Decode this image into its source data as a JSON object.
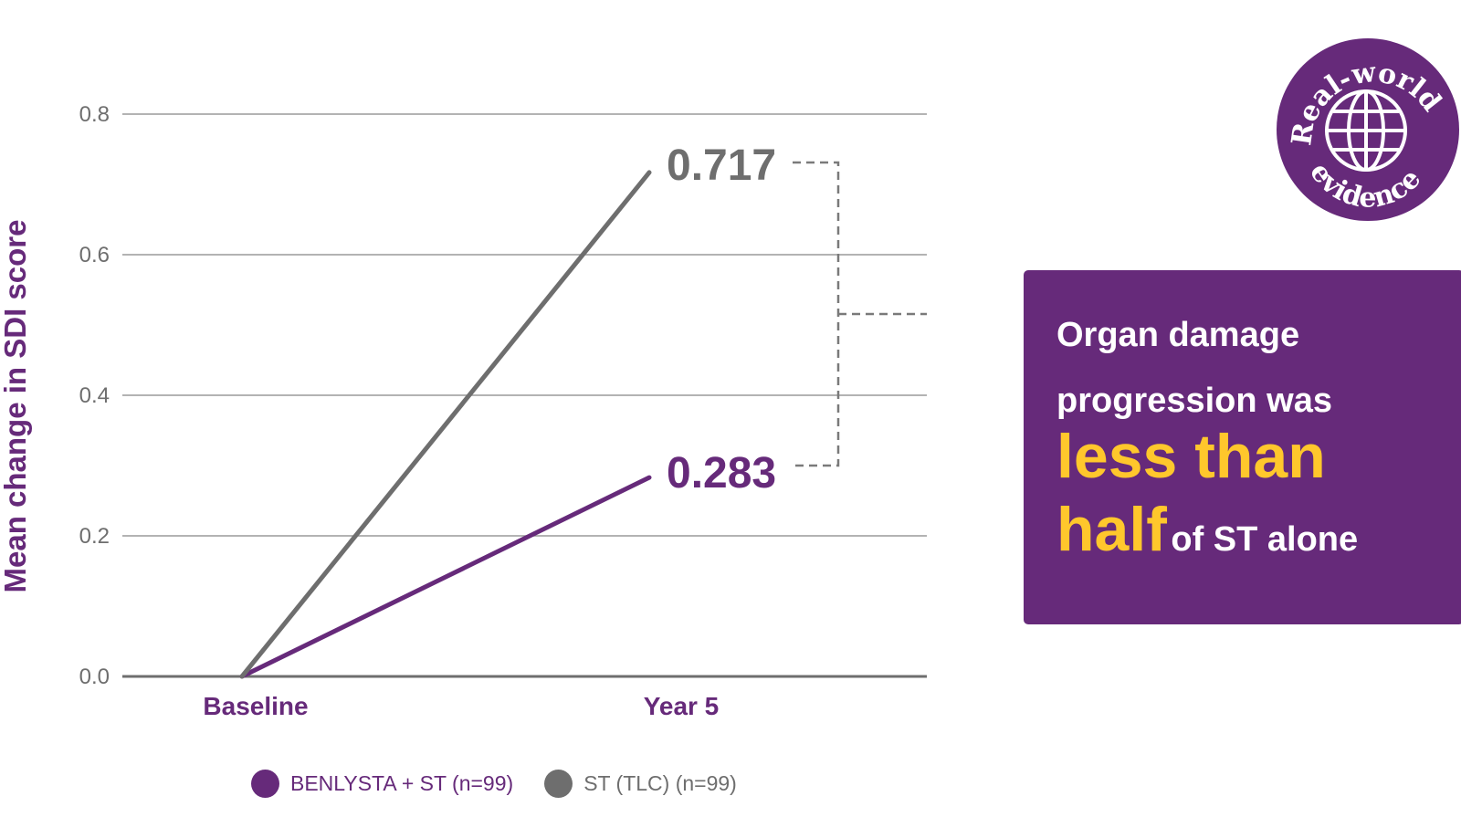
{
  "chart_data": {
    "type": "line",
    "categories": [
      "Baseline",
      "Year 5"
    ],
    "series": [
      {
        "name": "BENLYSTA + ST (n=99)",
        "values": [
          0.0,
          0.283
        ],
        "color": "#662a7a"
      },
      {
        "name": "ST (TLC) (n=99)",
        "values": [
          0.0,
          0.717
        ],
        "color": "#6e6e6e"
      }
    ],
    "data_labels": [
      "0.717",
      "0.283"
    ],
    "xlabel": "",
    "ylabel": "Mean change in SDI score",
    "ylim": [
      0,
      0.8
    ],
    "yticks": [
      "0.8",
      "0.6",
      "0.4",
      "0.2",
      "0.0"
    ],
    "grid": true,
    "legend_position": "bottom"
  },
  "callout": {
    "line1": "Organ damage",
    "line2": "progression was",
    "highlight1": "less than",
    "highlight2": "half",
    "rest": "of ST alone"
  },
  "badge": {
    "top_text": "Real-world",
    "bottom_text": "evidence",
    "icon": "globe-icon",
    "color": "#662a7a"
  },
  "colors": {
    "brand_purple": "#662a7a",
    "gray": "#6e6e6e",
    "highlight_yellow": "#ffc72c"
  }
}
